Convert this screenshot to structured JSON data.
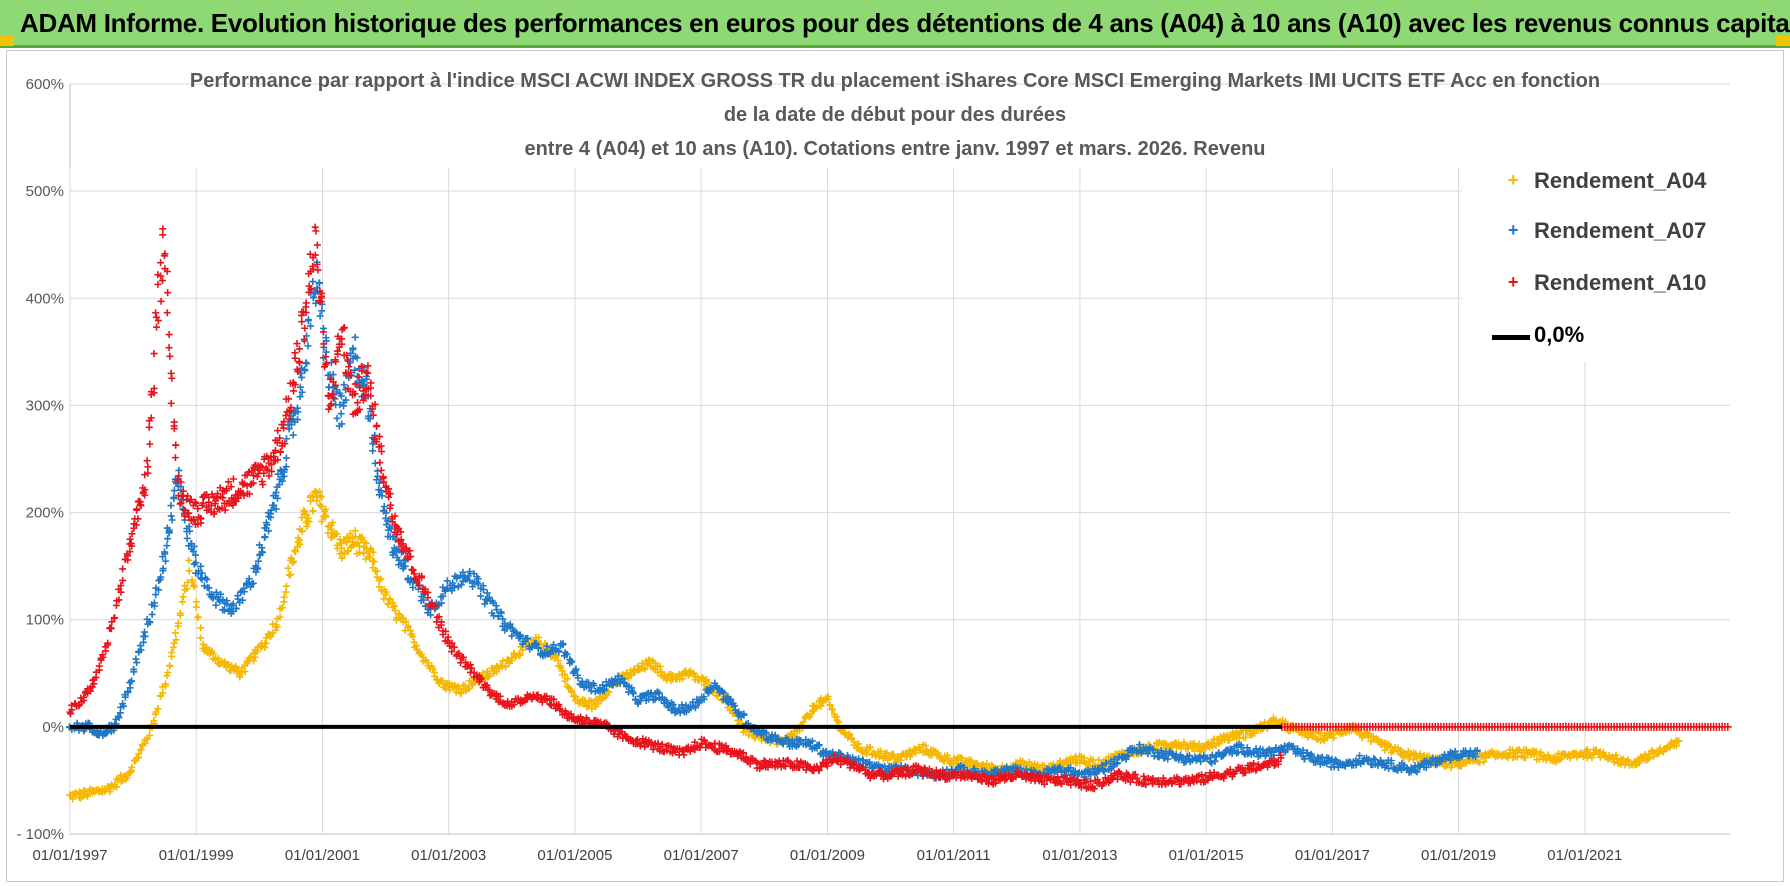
{
  "header": {
    "banner_title": "ADAM Informe. Evolution historique des performances en euros pour des détentions de 4 ans (A04) à 10 ans (A10) avec les revenus connus capitalisés"
  },
  "colors": {
    "banner": "#8ed973",
    "a04": "#f5b700",
    "a07": "#1f78c8",
    "a10": "#e8141c",
    "zero": "#000000"
  },
  "chart_data": {
    "type": "scatter",
    "title_lines": [
      "Performance par rapport à l'indice MSCI ACWI INDEX GROSS TR  du placement iShares Core MSCI Emerging Markets IMI UCITS ETF Acc en fonction",
      "de la date de début pour des durées",
      "entre 4 (A04) et 10 ans (A10).  Cotations entre janv. 1997 et mars. 2026.  Revenu"
    ],
    "xlabel": "",
    "ylabel": "",
    "x_range": [
      1997.0,
      2023.3
    ],
    "ylim": [
      -100,
      600
    ],
    "y_ticks": [
      -100,
      0,
      100,
      200,
      300,
      400,
      500,
      600
    ],
    "y_tick_labels": [
      "- 100%",
      "0%",
      "100%",
      "200%",
      "300%",
      "400%",
      "500%",
      "600%"
    ],
    "x_ticks": [
      1997,
      1999,
      2001,
      2003,
      2005,
      2007,
      2009,
      2011,
      2013,
      2015,
      2017,
      2019,
      2021
    ],
    "x_tick_labels": [
      "01/01/1997",
      "01/01/1999",
      "01/01/2001",
      "01/01/2003",
      "01/01/2005",
      "01/01/2007",
      "01/01/2009",
      "01/01/2011",
      "01/01/2013",
      "01/01/2015",
      "01/01/2017",
      "01/01/2019",
      "01/01/2021"
    ],
    "grid": true,
    "legend_position": "top-right",
    "series": [
      {
        "name": "Rendement_A04",
        "marker": "+",
        "x": [
          1997.0,
          1997.3,
          1997.6,
          1997.9,
          1998.1,
          1998.3,
          1998.5,
          1998.7,
          1998.9,
          1999.1,
          1999.4,
          1999.7,
          1999.9,
          2000.1,
          2000.3,
          2000.5,
          2000.7,
          2000.9,
          2001.1,
          2001.3,
          2001.5,
          2001.8,
          2002.0,
          2002.3,
          2002.6,
          2002.9,
          2003.2,
          2003.5,
          2003.8,
          2004.1,
          2004.4,
          2004.7,
          2005.0,
          2005.3,
          2005.6,
          2005.9,
          2006.2,
          2006.5,
          2006.8,
          2007.1,
          2007.4,
          2007.7,
          2008.0,
          2008.3,
          2008.6,
          2008.8,
          2009.0,
          2009.2,
          2009.5,
          2009.8,
          2010.1,
          2010.5,
          2010.9,
          2011.3,
          2011.7,
          2012.1,
          2012.5,
          2012.9,
          2013.3,
          2013.7,
          2014.1,
          2014.5,
          2014.9,
          2015.3,
          2015.7,
          2016.1,
          2016.5,
          2016.9,
          2017.3,
          2017.7,
          2018.1,
          2018.5,
          2018.9,
          2019.3,
          2019.7,
          2020.1,
          2020.5,
          2020.9,
          2021.3,
          2021.7,
          2022.1,
          2022.5
        ],
        "y": [
          -65,
          -62,
          -58,
          -45,
          -25,
          0,
          40,
          90,
          150,
          75,
          60,
          50,
          65,
          80,
          100,
          150,
          190,
          215,
          190,
          165,
          175,
          155,
          120,
          95,
          65,
          40,
          35,
          45,
          55,
          70,
          80,
          65,
          25,
          20,
          40,
          50,
          60,
          45,
          50,
          40,
          25,
          -5,
          -10,
          -15,
          0,
          20,
          25,
          0,
          -20,
          -25,
          -30,
          -20,
          -30,
          -35,
          -40,
          -35,
          -40,
          -30,
          -35,
          -25,
          -20,
          -15,
          -20,
          -10,
          -5,
          5,
          -5,
          -10,
          0,
          -15,
          -25,
          -30,
          -35,
          -30,
          -25,
          -25,
          -30,
          -25,
          -25,
          -35,
          -25,
          -15
        ]
      },
      {
        "name": "Rendement_A07",
        "marker": "+",
        "x": [
          1997.0,
          1997.3,
          1997.5,
          1997.7,
          1997.9,
          1998.1,
          1998.3,
          1998.5,
          1998.7,
          1998.8,
          1999.0,
          1999.3,
          1999.6,
          1999.9,
          2000.2,
          2000.4,
          2000.6,
          2000.8,
          2000.9,
          2001.1,
          2001.3,
          2001.5,
          2001.7,
          2001.9,
          2002.1,
          2002.4,
          2002.7,
          2003.0,
          2003.3,
          2003.6,
          2003.9,
          2004.2,
          2004.5,
          2004.8,
          2005.1,
          2005.4,
          2005.7,
          2006.0,
          2006.3,
          2006.6,
          2006.9,
          2007.2,
          2007.5,
          2007.8,
          2008.1,
          2008.4,
          2008.7,
          2009.0,
          2009.3,
          2009.6,
          2009.9,
          2010.3,
          2010.7,
          2011.1,
          2011.5,
          2011.9,
          2012.3,
          2012.7,
          2013.1,
          2013.5,
          2013.9,
          2014.3,
          2014.7,
          2015.1,
          2015.5,
          2015.9,
          2016.3,
          2016.7,
          2017.1,
          2017.5,
          2017.9,
          2018.3,
          2018.7,
          2019.0,
          2019.3
        ],
        "y": [
          0,
          0,
          -5,
          0,
          30,
          70,
          110,
          160,
          240,
          200,
          150,
          120,
          110,
          140,
          200,
          250,
          300,
          380,
          420,
          330,
          290,
          350,
          310,
          230,
          170,
          140,
          110,
          130,
          145,
          120,
          95,
          80,
          70,
          75,
          40,
          35,
          45,
          25,
          30,
          15,
          20,
          40,
          20,
          0,
          -10,
          -15,
          -15,
          -25,
          -30,
          -35,
          -40,
          -40,
          -45,
          -40,
          -45,
          -40,
          -45,
          -40,
          -45,
          -35,
          -20,
          -25,
          -30,
          -30,
          -20,
          -25,
          -20,
          -30,
          -35,
          -30,
          -35,
          -40,
          -30,
          -25,
          -25
        ]
      },
      {
        "name": "Rendement_A10",
        "marker": "+",
        "x": [
          1997.0,
          1997.2,
          1997.4,
          1997.6,
          1997.8,
          1998.0,
          1998.2,
          1998.3,
          1998.4,
          1998.5,
          1998.6,
          1998.7,
          1998.8,
          1999.0,
          1999.3,
          1999.6,
          1999.9,
          2000.2,
          2000.4,
          2000.6,
          2000.8,
          2000.9,
          2001.1,
          2001.3,
          2001.5,
          2001.7,
          2001.9,
          2002.1,
          2002.3,
          2002.5,
          2002.7,
          2002.9,
          2003.1,
          2003.4,
          2003.7,
          2004.0,
          2004.3,
          2004.6,
          2004.9,
          2005.2,
          2005.5,
          2005.8,
          2006.1,
          2006.4,
          2006.7,
          2007.0,
          2007.3,
          2007.6,
          2007.9,
          2008.2,
          2008.5,
          2008.8,
          2009.1,
          2009.4,
          2009.7,
          2010.0,
          2010.4,
          2010.8,
          2011.2,
          2011.6,
          2012.0,
          2012.4,
          2012.8,
          2013.2,
          2013.6,
          2014.0,
          2014.4,
          2014.8,
          2015.2,
          2015.6,
          2016.0,
          2016.2
        ],
        "y": [
          15,
          25,
          45,
          80,
          130,
          180,
          230,
          300,
          400,
          460,
          330,
          230,
          210,
          200,
          210,
          220,
          230,
          250,
          280,
          340,
          420,
          450,
          300,
          370,
          300,
          330,
          260,
          200,
          170,
          140,
          120,
          90,
          70,
          50,
          30,
          20,
          30,
          25,
          10,
          5,
          0,
          -10,
          -15,
          -20,
          -25,
          -15,
          -20,
          -25,
          -35,
          -35,
          -35,
          -40,
          -30,
          -35,
          -45,
          -45,
          -40,
          -45,
          -45,
          -50,
          -45,
          -50,
          -50,
          -55,
          -45,
          -50,
          -50,
          -50,
          -45,
          -40,
          -35,
          -30
        ]
      },
      {
        "name": "Rendement_A10_flat",
        "legend": false,
        "x_start": 2016.2,
        "x_end": 2023.3,
        "y": 0
      }
    ],
    "reference_line": {
      "name": "0,0%",
      "y": 0,
      "x_range": [
        1997.0,
        2016.2
      ]
    },
    "legend": [
      "Rendement_A04",
      "Rendement_A07",
      "Rendement_A10",
      "0,0%"
    ]
  }
}
